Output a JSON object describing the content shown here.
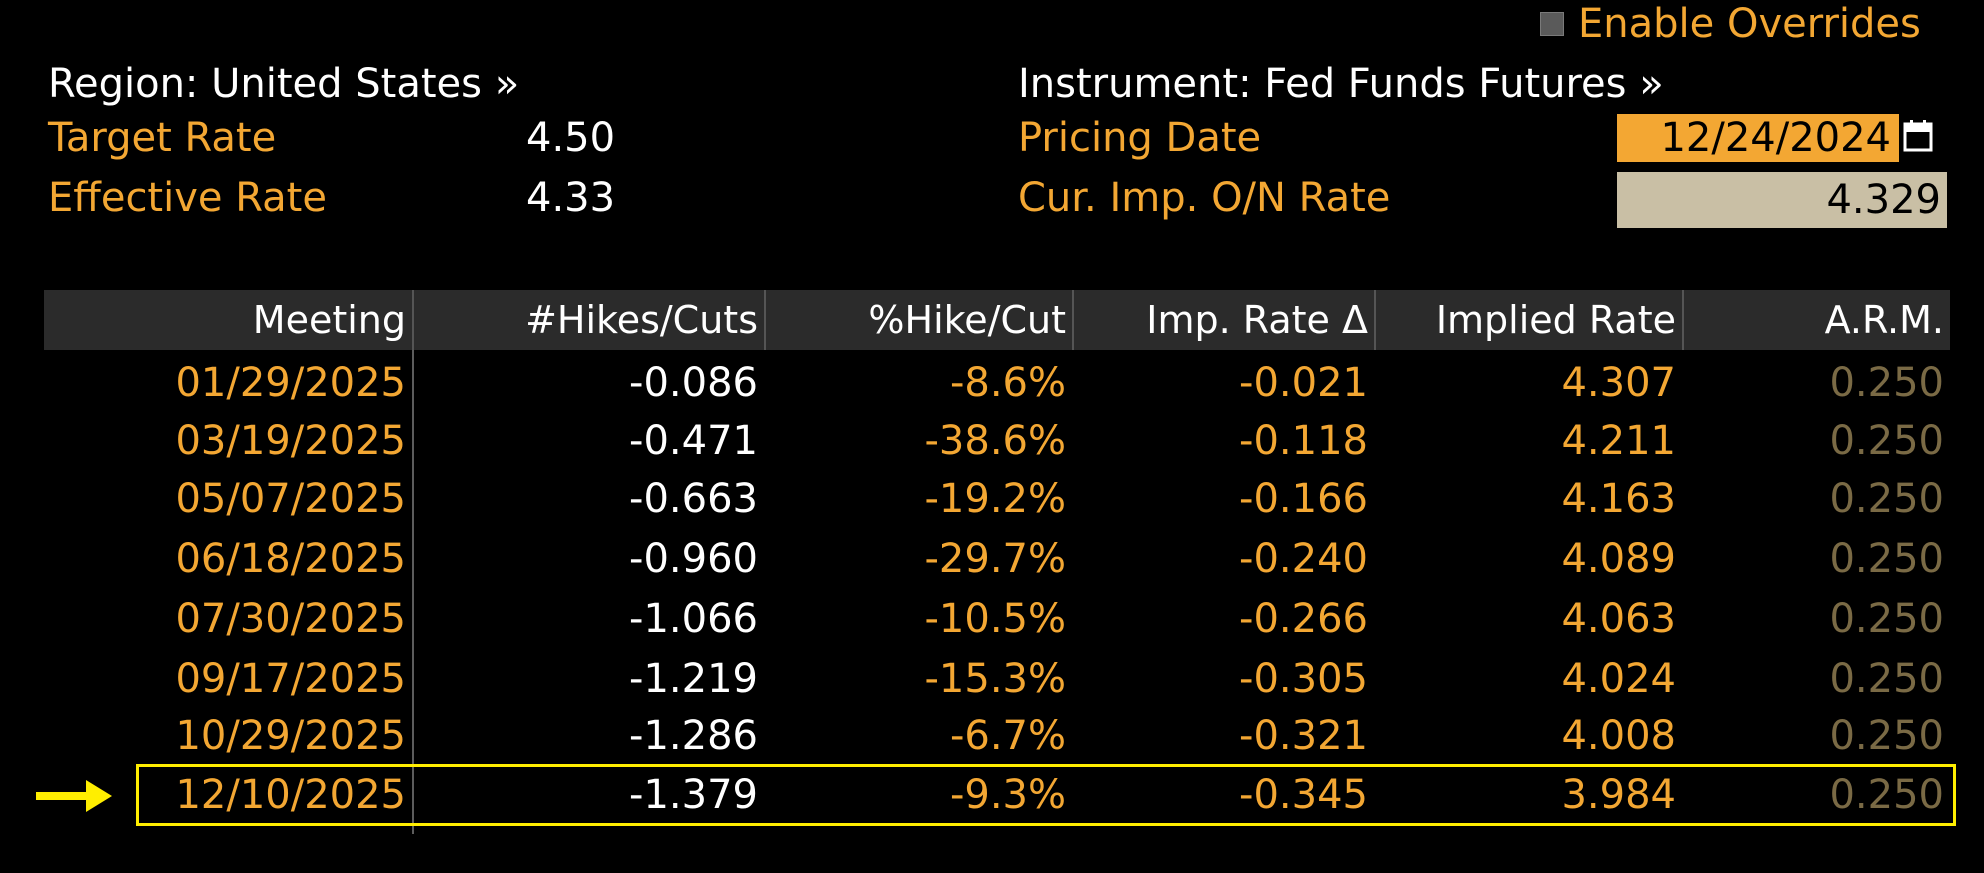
{
  "header": {
    "enable_overrides_label": "Enable Overrides",
    "region_label": "Region: United States »",
    "instrument_label": "Instrument: Fed Funds Futures »",
    "target_rate_label": "Target Rate",
    "target_rate_value": "4.50",
    "effective_rate_label": "Effective Rate",
    "effective_rate_value": "4.33",
    "pricing_date_label": "Pricing Date",
    "pricing_date_value": "12/24/2024",
    "cur_imp_label": "Cur. Imp. O/N Rate",
    "cur_imp_value": "4.329"
  },
  "table": {
    "columns": [
      "Meeting",
      "#Hikes/Cuts",
      "%Hike/Cut",
      "Imp. Rate Δ",
      "Implied Rate",
      "A.R.M."
    ],
    "rows": [
      {
        "meeting": "01/29/2025",
        "hikes_cuts": "-0.086",
        "pct": "-8.6%",
        "delta": "-0.021",
        "implied": "4.307",
        "arm": "0.250"
      },
      {
        "meeting": "03/19/2025",
        "hikes_cuts": "-0.471",
        "pct": "-38.6%",
        "delta": "-0.118",
        "implied": "4.211",
        "arm": "0.250"
      },
      {
        "meeting": "05/07/2025",
        "hikes_cuts": "-0.663",
        "pct": "-19.2%",
        "delta": "-0.166",
        "implied": "4.163",
        "arm": "0.250"
      },
      {
        "meeting": "06/18/2025",
        "hikes_cuts": "-0.960",
        "pct": "-29.7%",
        "delta": "-0.240",
        "implied": "4.089",
        "arm": "0.250"
      },
      {
        "meeting": "07/30/2025",
        "hikes_cuts": "-1.066",
        "pct": "-10.5%",
        "delta": "-0.266",
        "implied": "4.063",
        "arm": "0.250"
      },
      {
        "meeting": "09/17/2025",
        "hikes_cuts": "-1.219",
        "pct": "-15.3%",
        "delta": "-0.305",
        "implied": "4.024",
        "arm": "0.250"
      },
      {
        "meeting": "10/29/2025",
        "hikes_cuts": "-1.286",
        "pct": "-6.7%",
        "delta": "-0.321",
        "implied": "4.008",
        "arm": "0.250"
      },
      {
        "meeting": "12/10/2025",
        "hikes_cuts": "-1.379",
        "pct": "-9.3%",
        "delta": "-0.345",
        "implied": "3.984",
        "arm": "0.250"
      }
    ]
  },
  "highlighted_row": "12/10/2025",
  "colors": {
    "accent": "#f3a733",
    "highlight": "#ffee00",
    "background": "#000000",
    "header_bg": "#2b2b2b"
  },
  "icons": [
    "calendar-icon",
    "arrow-right-icon",
    "checkbox-icon"
  ]
}
